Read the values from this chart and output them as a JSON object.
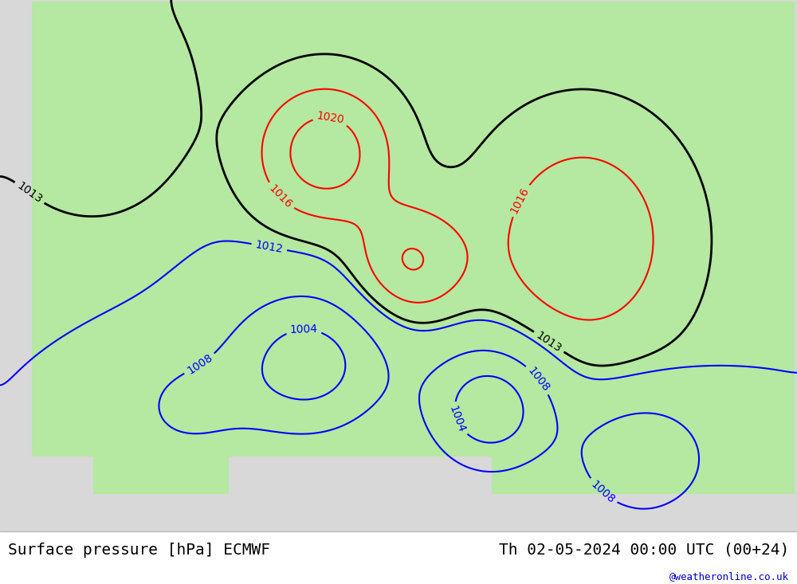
{
  "title_left": "Surface pressure [hPa] ECMWF",
  "title_right": "Th 02-05-2024 00:00 UTC (00+24)",
  "watermark": "@weatheronline.co.uk",
  "background_land": "#b5e8a0",
  "background_sea": "#d8d8d8",
  "background_outer": "#e8e8e8",
  "text_color_left": "#000000",
  "text_color_right": "#000000",
  "watermark_color": "#0000cc",
  "footer_bg": "#ffffff",
  "contour_blue_color": "#0000ff",
  "contour_black_color": "#000000",
  "contour_red_color": "#ff0000",
  "contour_linewidth": 1.5,
  "label_fontsize": 10,
  "title_fontsize": 14
}
